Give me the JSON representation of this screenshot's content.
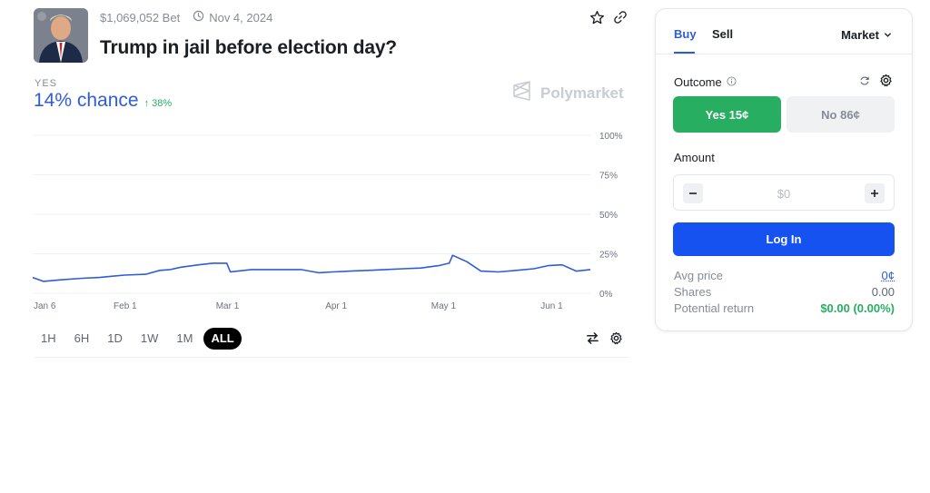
{
  "market": {
    "volume": "$1,069,052 Bet",
    "end_date": "Nov 4, 2024",
    "title": "Trump in jail before election day?",
    "outcome_label": "YES",
    "chance": "14% chance",
    "change": "↑ 38%",
    "brand": "Polymarket"
  },
  "icons": {
    "date": "clock-icon",
    "favorite": "star-icon",
    "share": "link-icon",
    "swap": "swap-icon",
    "chart_settings": "gear-icon",
    "info": "info-icon",
    "refresh": "refresh-icon",
    "settings": "gear-icon"
  },
  "chart_data": {
    "type": "line",
    "x_ticks": [
      "Jan 6",
      "Feb 1",
      "Mar 1",
      "Apr 1",
      "May 1",
      "Jun 1"
    ],
    "y_ticks": [
      "100%",
      "75%",
      "50%",
      "25%",
      "0%"
    ],
    "ylim": [
      0,
      100
    ],
    "grid": true,
    "series": [
      {
        "color": "#2e5cdb",
        "x": [
          "Jan 6",
          "Jan 9",
          "Jan 14",
          "Jan 20",
          "Jan 25",
          "Feb 1",
          "Feb 7",
          "Feb 11",
          "Feb 14",
          "Feb 17",
          "Feb 22",
          "Feb 26",
          "Mar 1",
          "Mar 2",
          "Mar 8",
          "Mar 15",
          "Mar 22",
          "Mar 27",
          "Mar 31",
          "Apr 5",
          "Apr 10",
          "Apr 15",
          "Apr 20",
          "Apr 25",
          "Apr 30",
          "May 3",
          "May 4",
          "May 8",
          "May 12",
          "May 17",
          "May 22",
          "May 27",
          "May 31",
          "Jun 4",
          "Jun 8",
          "Jun 12"
        ],
        "values": [
          10,
          7.5,
          8.5,
          9.5,
          10,
          11.5,
          12,
          14.5,
          15,
          16.5,
          18,
          19,
          19,
          13.5,
          15,
          15,
          15,
          13,
          13.5,
          14,
          14.5,
          15,
          15.5,
          16,
          17.5,
          19,
          24,
          20,
          14,
          13.5,
          14.5,
          15.5,
          17.5,
          18,
          14,
          15
        ]
      }
    ]
  },
  "timeframes": [
    "1H",
    "6H",
    "1D",
    "1W",
    "1M",
    "ALL"
  ],
  "active_timeframe": "ALL",
  "trade": {
    "tab_buy": "Buy",
    "tab_sell": "Sell",
    "order_type": "Market",
    "outcome_label": "Outcome",
    "yes_button": "Yes 15¢",
    "no_button": "No 86¢",
    "amount_label": "Amount",
    "amount_placeholder": "$0",
    "login_button": "Log In",
    "stats": [
      {
        "label": "Avg price",
        "value": "0¢"
      },
      {
        "label": "Shares",
        "value": "0.00"
      },
      {
        "label": "Potential return",
        "value": "$0.00 (0.00%)"
      }
    ]
  },
  "colors": {
    "accent": "#2e5cdb",
    "primary_button": "#1652f0",
    "yes_green": "#27ae60",
    "active_tab": "#000000"
  }
}
